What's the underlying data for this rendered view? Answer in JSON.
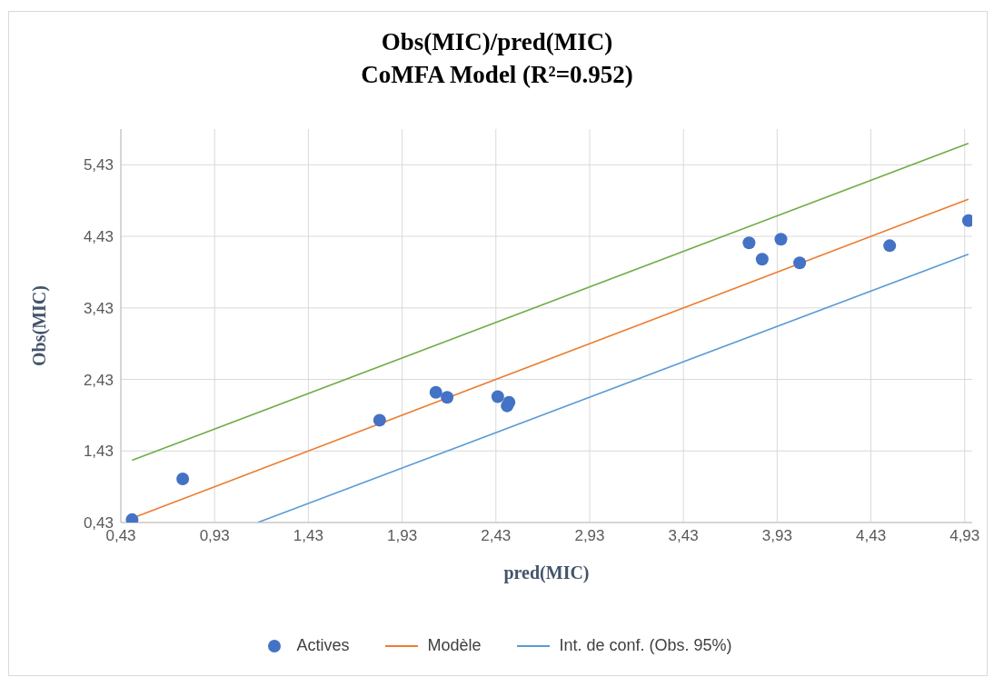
{
  "chart_data": {
    "type": "scatter",
    "title": "Obs(MIC)/pred(MIC)",
    "subtitle": "CoMFA Model (R²=0.952)",
    "xlabel": "pred(MIC)",
    "ylabel": "Obs(MIC)",
    "xlim": [
      0.43,
      4.97
    ],
    "ylim": [
      0.43,
      5.93
    ],
    "xticks": [
      {
        "value": 0.43,
        "label": "0,43"
      },
      {
        "value": 0.93,
        "label": "0,93"
      },
      {
        "value": 1.43,
        "label": "1,43"
      },
      {
        "value": 1.93,
        "label": "1,93"
      },
      {
        "value": 2.43,
        "label": "2,43"
      },
      {
        "value": 2.93,
        "label": "2,93"
      },
      {
        "value": 3.43,
        "label": "3,43"
      },
      {
        "value": 3.93,
        "label": "3,93"
      },
      {
        "value": 4.43,
        "label": "4,43"
      },
      {
        "value": 4.93,
        "label": "4,93"
      }
    ],
    "yticks": [
      {
        "value": 0.43,
        "label": "0,43"
      },
      {
        "value": 1.43,
        "label": "1,43"
      },
      {
        "value": 2.43,
        "label": "2,43"
      },
      {
        "value": 3.43,
        "label": "3,43"
      },
      {
        "value": 4.43,
        "label": "4,43"
      },
      {
        "value": 5.43,
        "label": "5,43"
      }
    ],
    "grid": true,
    "legend": "bottom",
    "series": [
      {
        "name": "Actives",
        "marker": "circle",
        "color": "#4472c4",
        "x": [
          0.49,
          0.76,
          1.81,
          2.11,
          2.17,
          2.44,
          2.49,
          2.5,
          3.78,
          3.85,
          3.95,
          4.05,
          4.53,
          4.95
        ],
        "values": [
          0.47,
          1.04,
          1.86,
          2.25,
          2.18,
          2.19,
          2.06,
          2.11,
          4.34,
          4.11,
          4.39,
          4.06,
          4.3,
          4.65
        ]
      },
      {
        "name": "Modèle",
        "type": "line",
        "marker": "none",
        "color": "#ed7d31",
        "x": [
          0.49,
          4.95
        ],
        "values": [
          0.49,
          4.95
        ]
      },
      {
        "name": "Int. de conf. (Obs. 95%)",
        "type": "line",
        "marker": "none",
        "color": "#5b9bd5",
        "x": [
          1.16,
          4.95
        ],
        "values": [
          0.43,
          4.18
        ]
      },
      {
        "type": "line",
        "marker": "none",
        "color": "#70ad47",
        "x": [
          0.49,
          4.95
        ],
        "values": [
          1.3,
          5.73
        ]
      }
    ]
  }
}
